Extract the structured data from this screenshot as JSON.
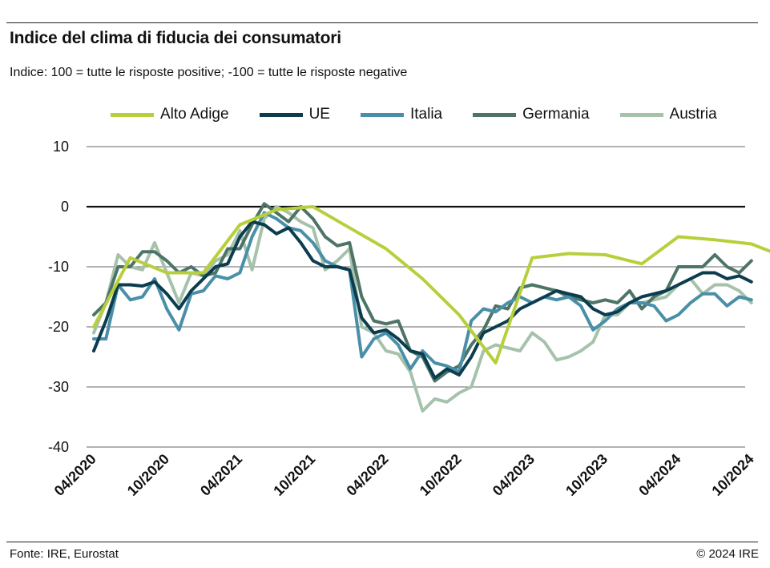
{
  "title": "Indice del clima di fiducia dei consumatori",
  "subtitle": "Indice: 100 = tutte le risposte positive; -100 = tutte le risposte negative",
  "footer": {
    "source": "Fonte: IRE, Eurostat",
    "copyright": "© 2024 IRE"
  },
  "chart_data": {
    "type": "line",
    "ylim": [
      -40,
      10
    ],
    "yticks": [
      10,
      0,
      -10,
      -20,
      -30,
      -40
    ],
    "x_tick_labels": [
      "04/2020",
      "10/2020",
      "04/2021",
      "10/2021",
      "04/2022",
      "10/2022",
      "04/2023",
      "10/2023",
      "04/2024",
      "10/2024"
    ],
    "x": [
      "04/2020",
      "05/2020",
      "06/2020",
      "07/2020",
      "08/2020",
      "09/2020",
      "10/2020",
      "11/2020",
      "12/2020",
      "01/2021",
      "02/2021",
      "03/2021",
      "04/2021",
      "05/2021",
      "06/2021",
      "07/2021",
      "08/2021",
      "09/2021",
      "10/2021",
      "11/2021",
      "12/2021",
      "01/2022",
      "02/2022",
      "03/2022",
      "04/2022",
      "05/2022",
      "06/2022",
      "07/2022",
      "08/2022",
      "09/2022",
      "10/2022",
      "11/2022",
      "12/2022",
      "01/2023",
      "02/2023",
      "03/2023",
      "04/2023",
      "05/2023",
      "06/2023",
      "07/2023",
      "08/2023",
      "09/2023",
      "10/2023",
      "11/2023",
      "12/2023",
      "01/2024",
      "02/2024",
      "03/2024",
      "04/2024",
      "05/2024",
      "06/2024",
      "07/2024",
      "08/2024",
      "09/2024",
      "10/2024"
    ],
    "grid": true,
    "zero_line": true,
    "legend_position": "top",
    "series": [
      {
        "name": "Alto Adige",
        "color": "#b8cf3c",
        "points": [
          [
            0,
            -20
          ],
          [
            3,
            -8.5
          ],
          [
            6,
            -11
          ],
          [
            9,
            -11
          ],
          [
            12,
            -3
          ],
          [
            15,
            -0.5
          ],
          [
            18,
            0
          ],
          [
            21,
            -3.5
          ],
          [
            24,
            -7
          ],
          [
            27,
            -12
          ],
          [
            30,
            -18
          ],
          [
            33,
            -26
          ],
          [
            36,
            -8.5
          ],
          [
            39,
            -7.8
          ],
          [
            42,
            -8
          ],
          [
            45,
            -9.5
          ],
          [
            48,
            -5
          ],
          [
            51,
            -5.5
          ],
          [
            54,
            -6.2
          ],
          [
            56,
            -7.8
          ]
        ]
      },
      {
        "name": "UE",
        "color": "#0b3d4f",
        "values": [
          -24,
          -19,
          -13,
          -13,
          -13.2,
          -12.5,
          -14.5,
          -17,
          -14,
          -12,
          -10,
          -9.5,
          -5,
          -2.5,
          -3,
          -4.5,
          -3.5,
          -6,
          -9,
          -10,
          -10,
          -10.5,
          -18.5,
          -21,
          -20.5,
          -22,
          -24,
          -24.5,
          -28.5,
          -27,
          -28,
          -25,
          -21,
          -20,
          -19,
          -17,
          -16,
          -15,
          -14,
          -14.5,
          -15,
          -17,
          -18,
          -17.5,
          -16,
          -15,
          -14.5,
          -14,
          -13,
          -12,
          -11,
          -11,
          -12,
          -11.5,
          -12.5
        ]
      },
      {
        "name": "Italia",
        "color": "#4a8fa8",
        "values": [
          -22,
          -22,
          -13,
          -15.5,
          -15,
          -12,
          -17,
          -20.5,
          -14.5,
          -14,
          -11.5,
          -12,
          -11,
          -5,
          -1,
          -2,
          -3.5,
          -4,
          -6,
          -9,
          -10,
          -10.5,
          -25,
          -22,
          -21,
          -23,
          -27,
          -24,
          -26,
          -26.5,
          -27.5,
          -19,
          -17,
          -17.5,
          -16,
          -15,
          -16,
          -15,
          -15.5,
          -15,
          -16.5,
          -20.5,
          -19,
          -17,
          -16,
          -16,
          -16.5,
          -19,
          -18,
          -16,
          -14.5,
          -14.5,
          -16.5,
          -15,
          -15.5
        ]
      },
      {
        "name": "Germania",
        "color": "#4d7466",
        "values": [
          -18,
          -16,
          -10,
          -10,
          -7.5,
          -7.5,
          -9,
          -11,
          -10,
          -11.5,
          -11,
          -7,
          -7,
          -3,
          0.5,
          -1,
          -2.5,
          0,
          -2,
          -5,
          -6.5,
          -6,
          -15,
          -19,
          -19.5,
          -19,
          -24,
          -25,
          -29,
          -27.5,
          -26.5,
          -23,
          -20.5,
          -16.5,
          -17,
          -13.5,
          -13,
          -13.5,
          -14,
          -15,
          -15.5,
          -16,
          -15.5,
          -16,
          -14,
          -17,
          -15,
          -14,
          -10,
          -10,
          -10,
          -8,
          -10,
          -11,
          -9
        ]
      },
      {
        "name": "Austria",
        "color": "#a6c2ab",
        "values": [
          -21,
          -16,
          -8,
          -10,
          -10.5,
          -6,
          -11,
          -16,
          -11,
          -11.5,
          -9,
          -8,
          -4,
          -10.5,
          -2,
          0,
          -1,
          -2.5,
          -3.5,
          -10.5,
          -9,
          -7,
          -20,
          -21,
          -24,
          -24.5,
          -27.5,
          -34,
          -32,
          -32.5,
          -31,
          -30,
          -24,
          -23,
          -23.5,
          -24,
          -21,
          -22.5,
          -25.5,
          -25,
          -24,
          -22.5,
          -18,
          -18,
          -16,
          -16,
          -15.5,
          -15,
          -13,
          -12,
          -14.5,
          -13,
          -13,
          -14,
          -16
        ]
      }
    ]
  }
}
